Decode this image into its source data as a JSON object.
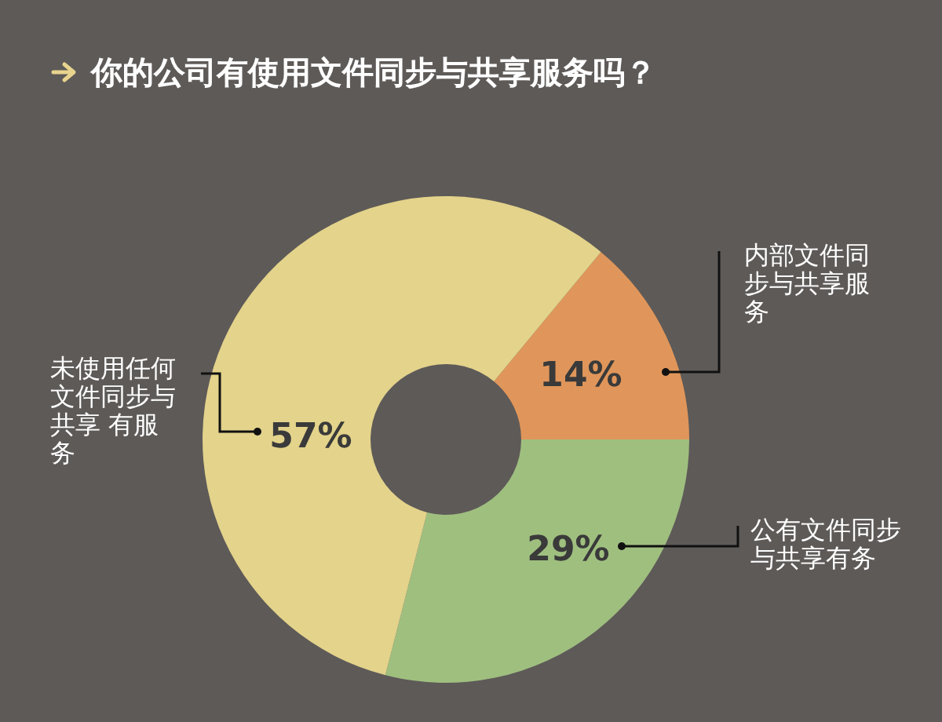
{
  "chart_data": {
    "type": "donut",
    "title": "你的公司有使用文件同步与共享服务吗？",
    "categories": [
      "内部文件同步与共享服务",
      "公有文件同步与共享有务",
      "未使用任何文件同步与共享 有服务"
    ],
    "values": [
      14,
      29,
      57
    ],
    "colors": [
      "#e0965a",
      "#9fbf7f",
      "#e3d38b"
    ],
    "value_labels": [
      "14%",
      "29%",
      "57%"
    ]
  }
}
